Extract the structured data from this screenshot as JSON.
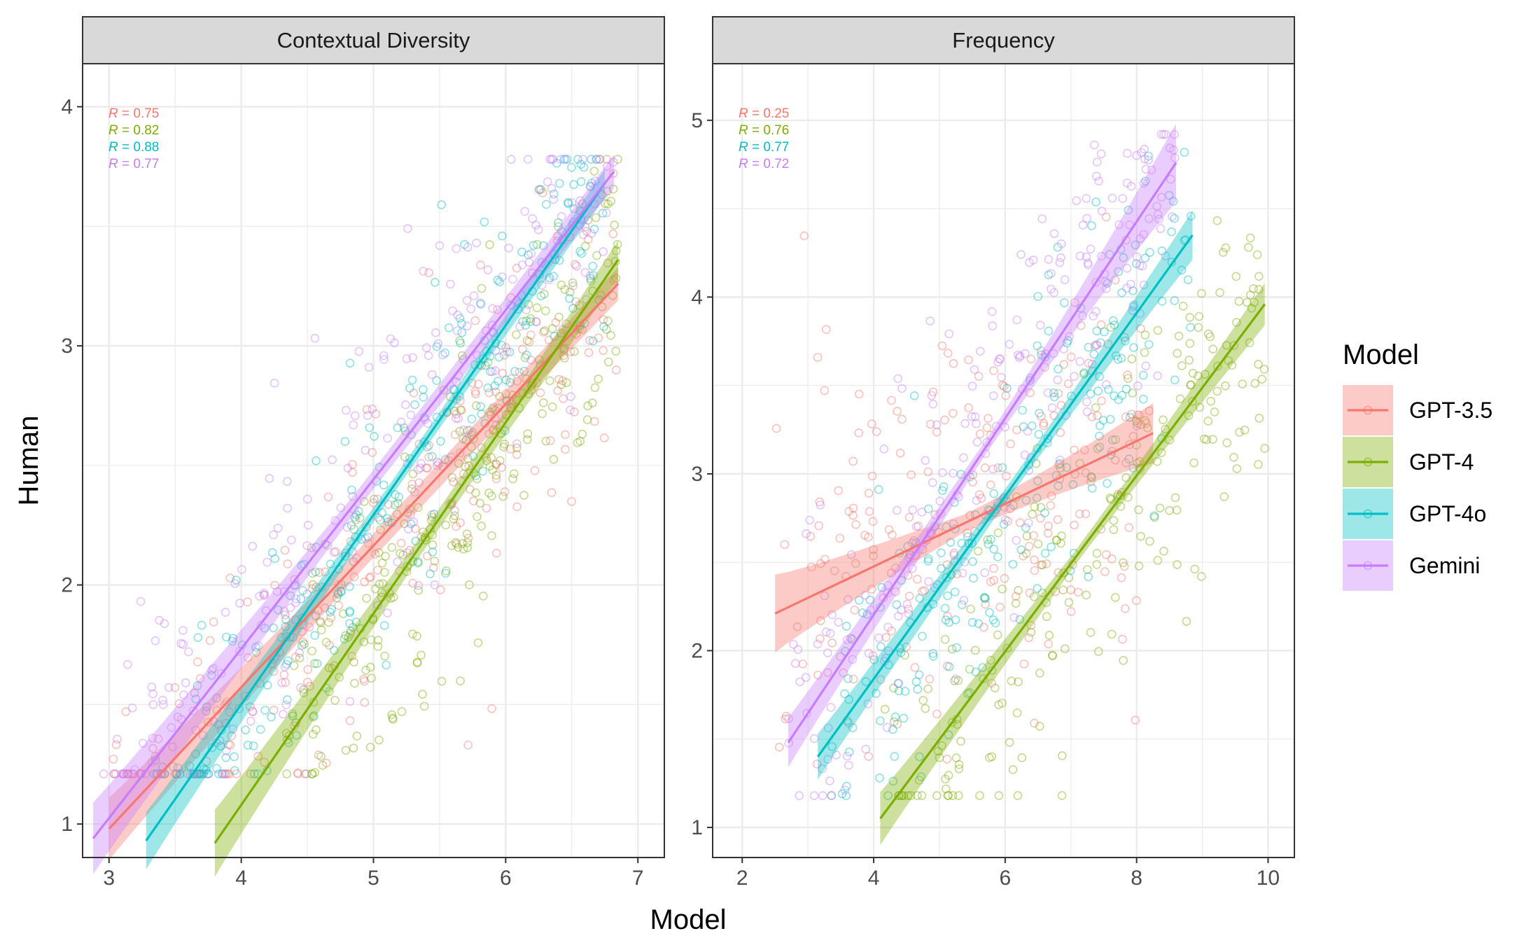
{
  "colors": {
    "GPT-3.5": "#F8766D",
    "GPT-4": "#7CAE00",
    "GPT-4o": "#00BFC4",
    "Gemini": "#C77CFF",
    "strip_fill": "#D9D9D9",
    "grid": "#EBEBEB"
  },
  "x_axis_title": "Model",
  "y_axis_title": "Human",
  "legend": {
    "title": "Model",
    "entries": [
      "GPT-3.5",
      "GPT-4",
      "GPT-4o",
      "Gemini"
    ]
  },
  "chart_data": [
    {
      "type": "scatter",
      "panel": "Contextual Diversity",
      "x_range": [
        2.8,
        7.2
      ],
      "y_range": [
        0.86,
        4.18
      ],
      "x_ticks": [
        3,
        4,
        5,
        6,
        7
      ],
      "y_ticks": [
        1,
        2,
        3,
        4
      ],
      "grid": true,
      "annotations": [
        {
          "series": "GPT-3.5",
          "r": "0.75"
        },
        {
          "series": "GPT-4",
          "r": "0.82"
        },
        {
          "series": "GPT-4o",
          "r": "0.88"
        },
        {
          "series": "Gemini",
          "r": "0.77"
        }
      ],
      "series": [
        {
          "name": "GPT-3.5",
          "x_min": 3.0,
          "x_max": 6.85,
          "fit": [
            [
              3.0,
              0.98
            ],
            [
              6.85,
              3.26
            ]
          ],
          "ci_halfwidth": [
            0.13,
            0.05,
            0.07
          ],
          "cloud_x": [
            3.0,
            6.85
          ],
          "cloud_sd": 0.3,
          "n": 260
        },
        {
          "name": "GPT-4",
          "x_min": 3.8,
          "x_max": 6.85,
          "fit": [
            [
              3.8,
              0.92
            ],
            [
              6.85,
              3.36
            ]
          ],
          "ci_halfwidth": [
            0.14,
            0.04,
            0.08
          ],
          "cloud_x": [
            4.3,
            6.85
          ],
          "cloud_sd": 0.3,
          "n": 260
        },
        {
          "name": "GPT-4o",
          "x_min": 3.28,
          "x_max": 6.75,
          "fit": [
            [
              3.28,
              0.93
            ],
            [
              6.75,
              3.68
            ]
          ],
          "ci_halfwidth": [
            0.12,
            0.03,
            0.06
          ],
          "cloud_x": [
            3.3,
            6.75
          ],
          "cloud_sd": 0.28,
          "n": 260
        },
        {
          "name": "Gemini",
          "x_min": 2.88,
          "x_max": 6.82,
          "fit": [
            [
              2.88,
              0.94
            ],
            [
              6.82,
              3.73
            ]
          ],
          "ci_halfwidth": [
            0.15,
            0.04,
            0.07
          ],
          "cloud_x": [
            2.9,
            6.82
          ],
          "cloud_sd": 0.3,
          "n": 260
        }
      ]
    },
    {
      "type": "scatter",
      "panel": "Frequency",
      "x_range": [
        1.55,
        10.4
      ],
      "y_range": [
        0.83,
        5.32
      ],
      "x_ticks": [
        2,
        4,
        6,
        8,
        10
      ],
      "y_ticks": [
        1,
        2,
        3,
        4,
        5
      ],
      "grid": true,
      "annotations": [
        {
          "series": "GPT-3.5",
          "r": "0.25"
        },
        {
          "series": "GPT-4",
          "r": "0.76"
        },
        {
          "series": "GPT-4o",
          "r": "0.77"
        },
        {
          "series": "Gemini",
          "r": "0.72"
        }
      ],
      "series": [
        {
          "name": "GPT-3.5",
          "x_min": 2.5,
          "x_max": 8.25,
          "fit": [
            [
              2.5,
              2.21
            ],
            [
              8.25,
              3.23
            ]
          ],
          "ci_halfwidth": [
            0.22,
            0.05,
            0.17
          ],
          "cloud_x": [
            2.5,
            8.25
          ],
          "cloud_sd": 0.6,
          "n": 230
        },
        {
          "name": "GPT-4",
          "x_min": 4.1,
          "x_max": 9.95,
          "fit": [
            [
              4.1,
              1.05
            ],
            [
              9.95,
              3.96
            ]
          ],
          "ci_halfwidth": [
            0.15,
            0.04,
            0.12
          ],
          "cloud_x": [
            4.1,
            9.95
          ],
          "cloud_sd": 0.45,
          "n": 230
        },
        {
          "name": "GPT-4o",
          "x_min": 3.15,
          "x_max": 8.85,
          "fit": [
            [
              3.15,
              1.4
            ],
            [
              8.85,
              4.35
            ]
          ],
          "ci_halfwidth": [
            0.13,
            0.04,
            0.14
          ],
          "cloud_x": [
            3.2,
            8.85
          ],
          "cloud_sd": 0.4,
          "n": 230
        },
        {
          "name": "Gemini",
          "x_min": 2.7,
          "x_max": 8.6,
          "fit": [
            [
              2.7,
              1.48
            ],
            [
              8.6,
              4.76
            ]
          ],
          "ci_halfwidth": [
            0.14,
            0.04,
            0.22
          ],
          "cloud_x": [
            2.7,
            8.6
          ],
          "cloud_sd": 0.45,
          "n": 230
        }
      ]
    }
  ]
}
